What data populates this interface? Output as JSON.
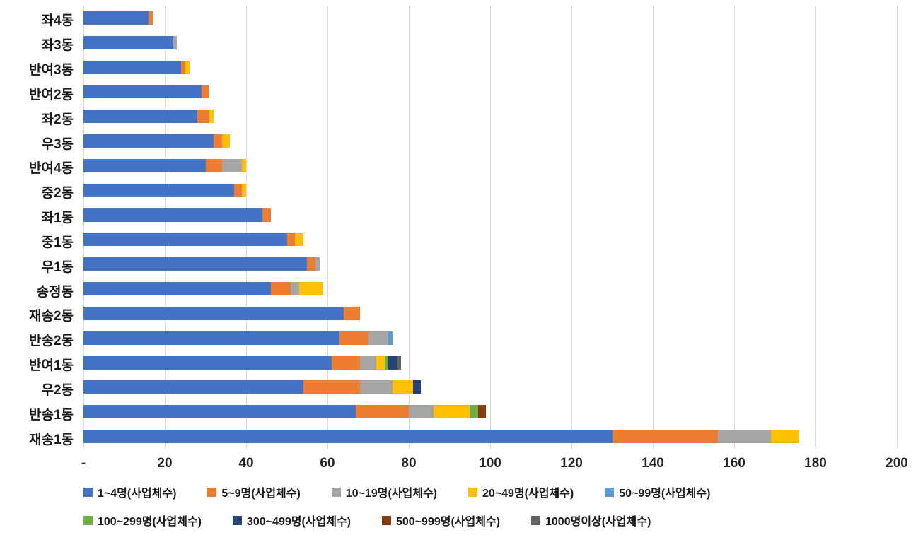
{
  "chart_data": {
    "type": "bar",
    "orientation": "horizontal",
    "stacked": true,
    "title": "",
    "xlabel": "",
    "ylabel": "",
    "xlim": [
      0,
      200
    ],
    "x_tick_values": [
      0,
      20,
      40,
      60,
      80,
      100,
      120,
      140,
      160,
      180,
      200
    ],
    "x_tick_labels": [
      "-",
      "20",
      "40",
      "60",
      "80",
      "100",
      "120",
      "140",
      "160",
      "180",
      "200"
    ],
    "grid": true,
    "legend_position": "bottom",
    "categories": [
      "좌4동",
      "좌3동",
      "반여3동",
      "반여2동",
      "좌2동",
      "우3동",
      "반여4동",
      "중2동",
      "좌1동",
      "중1동",
      "우1동",
      "송정동",
      "재송2동",
      "반송2동",
      "반여1동",
      "우2동",
      "반송1동",
      "재송1동"
    ],
    "series": [
      {
        "name": "1~4명(사업체수)",
        "color": "#4472c4",
        "values": [
          16,
          22,
          24,
          29,
          28,
          32,
          30,
          37,
          44,
          50,
          55,
          46,
          64,
          63,
          61,
          54,
          67,
          130
        ]
      },
      {
        "name": "5~9명(사업체수)",
        "color": "#ed7d31",
        "values": [
          1,
          0,
          1,
          2,
          3,
          2,
          4,
          2,
          2,
          2,
          2,
          5,
          4,
          7,
          7,
          14,
          13,
          26
        ]
      },
      {
        "name": "10~19명(사업체수)",
        "color": "#a5a5a5",
        "values": [
          0,
          1,
          0,
          0,
          0,
          0,
          5,
          0,
          0,
          0,
          1,
          2,
          0,
          5,
          4,
          8,
          6,
          13
        ]
      },
      {
        "name": "20~49명(사업체수)",
        "color": "#ffc000",
        "values": [
          0,
          0,
          1,
          0,
          1,
          2,
          1,
          1,
          0,
          2,
          0,
          6,
          0,
          0,
          2,
          5,
          9,
          7
        ]
      },
      {
        "name": "50~99명(사업체수)",
        "color": "#5b9bd5",
        "values": [
          0,
          0,
          0,
          0,
          0,
          0,
          0,
          0,
          0,
          0,
          0,
          0,
          0,
          1,
          0,
          0,
          0,
          0
        ]
      },
      {
        "name": "100~299명(사업체수)",
        "color": "#70ad47",
        "values": [
          0,
          0,
          0,
          0,
          0,
          0,
          0,
          0,
          0,
          0,
          0,
          0,
          0,
          0,
          1,
          0,
          2,
          0
        ]
      },
      {
        "name": "300~499명(사업체수)",
        "color": "#264478",
        "values": [
          0,
          0,
          0,
          0,
          0,
          0,
          0,
          0,
          0,
          0,
          0,
          0,
          0,
          0,
          2,
          2,
          0,
          0
        ]
      },
      {
        "name": "500~999명(사업체수)",
        "color": "#843c0c",
        "values": [
          0,
          0,
          0,
          0,
          0,
          0,
          0,
          0,
          0,
          0,
          0,
          0,
          0,
          0,
          0,
          0,
          2,
          0
        ]
      },
      {
        "name": "1000명이상(사업체수)",
        "color": "#636363",
        "values": [
          0,
          0,
          0,
          0,
          0,
          0,
          0,
          0,
          0,
          0,
          0,
          0,
          0,
          0,
          1,
          0,
          0,
          0
        ]
      }
    ]
  }
}
